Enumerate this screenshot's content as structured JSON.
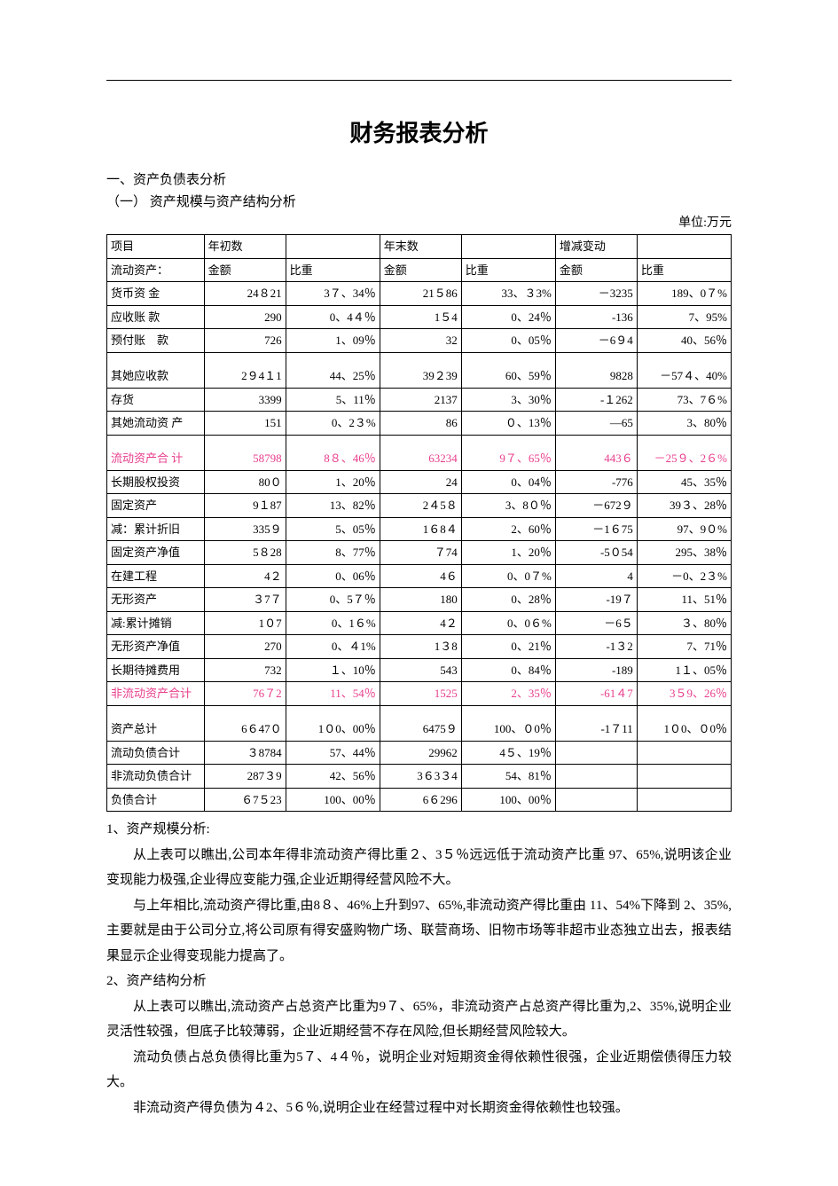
{
  "title": "财务报表分析",
  "section1": "一、资产负债表分析",
  "section1_1": "（一） 资产规模与资产结构分析",
  "unit_label": "单位:万元",
  "table": {
    "header": {
      "c1": "项目",
      "c2": "年初数",
      "c4": "年末数",
      "c6": "增减变动",
      "sub_amount": "金额",
      "sub_weight": "比重",
      "row2_label": "流动资产："
    },
    "rows": [
      {
        "label": "货币资 金",
        "a1": "24８21",
        "p1": "3７、34％",
        "a2": "21５86",
        "p2": "33、３3%",
        "a3": "－3235",
        "p3": "189、0７%",
        "cls": ""
      },
      {
        "label": "应收账 款",
        "a1": "290",
        "p1": "0、4４％",
        "a2": "1５4",
        "p2": "0、24％",
        "a3": "-136",
        "p3": "7、95%",
        "cls": ""
      },
      {
        "label": "预付账　款",
        "a1": "726",
        "p1": "1、09％",
        "a2": "32",
        "p2": "0、05％",
        "a3": "－6９4",
        "p3": "40、56％",
        "cls": ""
      },
      {
        "label": "其她应收款",
        "a1": "2９4１1",
        "p1": "44、25％",
        "a2": "39２39",
        "p2": "60、59％",
        "a3": "9828",
        "p3": "－57４、40%",
        "cls": "tall"
      },
      {
        "label": "存货",
        "a1": "3399",
        "p1": "5、11％",
        "a2": "2137",
        "p2": "3、30％",
        "a3": "-１262",
        "p3": "73、7６%",
        "cls": ""
      },
      {
        "label": "其她流动资 产",
        "a1": "151",
        "p1": "0、2３%",
        "a2": "86",
        "p2": "０、13％",
        "a3": "―65",
        "p3": "3、80％",
        "cls": ""
      },
      {
        "label": "流动资产合 计",
        "a1": "58798",
        "p1": "8８、46％",
        "a2": "63234",
        "p2": "9７、65％",
        "a3": "443６",
        "p3": "－25９、2６%",
        "cls": "pink tall"
      },
      {
        "label": "长期股权投资",
        "a1": "80０",
        "p1": "1、20％",
        "a2": "24",
        "p2": "0、04％",
        "a3": "-776",
        "p3": "45、35％",
        "cls": ""
      },
      {
        "label": "固定资产",
        "a1": "9１87",
        "p1": "13、82％",
        "a2": "2４5８",
        "p2": "3、8０％",
        "a3": "－672９",
        "p3": "39３、28％",
        "cls": ""
      },
      {
        "label": "减：累计折旧",
        "a1": "335９",
        "p1": "5、05％",
        "a2": "1６8４",
        "p2": "2、60％",
        "a3": "－1６75",
        "p3": "97、9０%",
        "cls": ""
      },
      {
        "label": "固定资产净值",
        "a1": "5８28",
        "p1": "8、77％",
        "a2": "７74",
        "p2": "1、20％",
        "a3": "-5０54",
        "p3": "295、38％",
        "cls": ""
      },
      {
        "label": "在建工程",
        "a1": "4２",
        "p1": "0、06％",
        "a2": "4６",
        "p2": "0、0７%",
        "a3": "4",
        "p3": "－0、2３%",
        "cls": ""
      },
      {
        "label": "无形资产",
        "a1": "３7７",
        "p1": "0、5７％",
        "a2": "180",
        "p2": "0、28％",
        "a3": "-19７",
        "p3": "11、51％",
        "cls": ""
      },
      {
        "label": "减:累计摊销",
        "a1": "1０7",
        "p1": "0、1６%",
        "a2": "4２",
        "p2": "0、0６%",
        "a3": "－6５",
        "p3": "３、80％",
        "cls": ""
      },
      {
        "label": "无形资产净值",
        "a1": "270",
        "p1": "0、４1%",
        "a2": "1３8",
        "p2": "0、21％",
        "a3": "-1３2",
        "p3": "7、71％",
        "cls": ""
      },
      {
        "label": "长期待摊费用",
        "a1": "732",
        "p1": "１、10％",
        "a2": "543",
        "p2": "0、84％",
        "a3": "-189",
        "p3": "1１、05％",
        "cls": ""
      },
      {
        "label": "非流动资产合计",
        "a1": "76７2",
        "p1": "11、54％",
        "a2": "1525",
        "p2": "2、35％",
        "a3": "-61４7",
        "p3": "3５9、26％",
        "cls": "pink"
      },
      {
        "label": "资产总计",
        "a1": "6６47０",
        "p1": "1０0、00％",
        "a2": "6475９",
        "p2": "100、０0％",
        "a3": "-1７11",
        "p3": "1０0、０0％",
        "cls": "tall"
      },
      {
        "label": "流动负债合计",
        "a1": "３8784",
        "p1": "57、44％",
        "a2": "29962",
        "p2": "4５、19％",
        "a3": "",
        "p3": "",
        "cls": ""
      },
      {
        "label": "非流动负债合计",
        "a1": "287３9",
        "p1": "42、56％",
        "a2": "3６3３4",
        "p2": "54、81％",
        "a3": "",
        "p3": "",
        "cls": ""
      },
      {
        "label": "负债合计",
        "a1": "６7５23",
        "p1": "100、00％",
        "a2": "6６296",
        "p2": "100、00％",
        "a3": "",
        "p3": "",
        "cls": ""
      }
    ]
  },
  "para": {
    "h1": "1、资产规模分析:",
    "p1": "从上表可以瞧出,公司本年得非流动资产得比重２、3５％远远低于流动资产比重 97、65%,说明该企业变现能力极强,企业得应变能力强,企业近期得经营风险不大。",
    "p2": "与上年相比,流动资产得比重,由8８、46%上升到97、65%,非流动资产得比重由 11、54%下降到 2、35%,主要就是由于公司分立,将公司原有得安盛购物广场、联营商场、旧物市场等非超市业态独立出去，报表结果显示企业得变现能力提高了。",
    "h2": "2、资产结构分析",
    "p3": "从上表可以瞧出,流动资产占总资产比重为9７、65%，非流动资产占总资产得比重为,2、35%,说明企业灵活性较强，但底子比较薄弱，企业近期经营不存在风险,但长期经营风险较大。",
    "p4": "流动负债占总负债得比重为5７、4４％，说明企业对短期资金得依赖性很强，企业近期偿债得压力较大。",
    "p5": "非流动资产得负债为４2、5６％,说明企业在经营过程中对长期资金得依赖性也较强。"
  }
}
